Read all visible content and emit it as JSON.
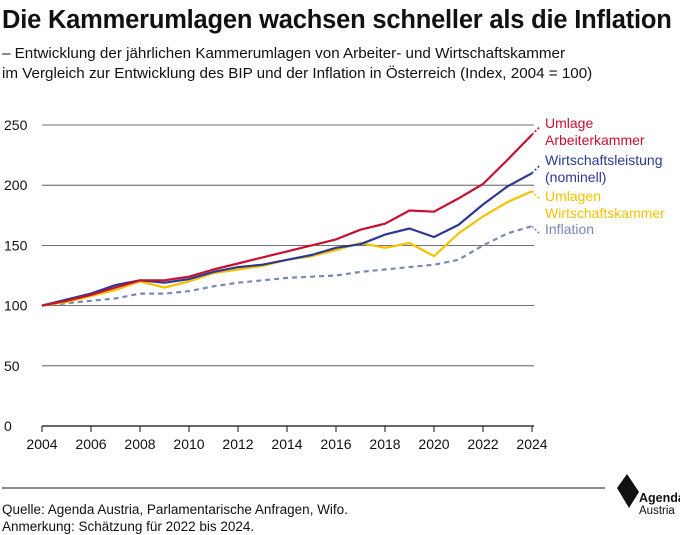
{
  "title": "Die Kammerumlagen wachsen schneller als die Inflation",
  "subtitle_line1": "– Entwicklung der jährlichen Kammerumlagen von Arbeiter- und Wirtschaftskammer",
  "subtitle_line2": "im Vergleich zur Entwicklung des BIP und der Inflation in Österreich (Index, 2004 = 100)",
  "footer": {
    "source": "Quelle: Agenda Austria, Parlamentarische Anfragen, Wifo.",
    "note": "Anmerkung: Schätzung für 2022 bis 2024."
  },
  "logo": {
    "brand": "Agenda",
    "brand2": "Austria"
  },
  "chart_data": {
    "type": "line",
    "x": [
      2004,
      2005,
      2006,
      2007,
      2008,
      2009,
      2010,
      2011,
      2012,
      2013,
      2014,
      2015,
      2016,
      2017,
      2018,
      2019,
      2020,
      2021,
      2022,
      2023,
      2024
    ],
    "xticks": [
      "2004",
      "2006",
      "2008",
      "2010",
      "2012",
      "2014",
      "2016",
      "2018",
      "2020",
      "2022",
      "2024"
    ],
    "yticks": [
      "0",
      "50",
      "100",
      "150",
      "200",
      "250"
    ],
    "ylim": [
      0,
      250
    ],
    "xlim": [
      2004,
      2024
    ],
    "grid": "horizontal",
    "legend": "inline-right",
    "series": [
      {
        "name_line1": "Umlage",
        "name_line2": "Arbeiterkammer",
        "color": "#c8102e",
        "dashed": false,
        "values": [
          100,
          104,
          109,
          115,
          121,
          121,
          124,
          130,
          135,
          140,
          145,
          150,
          155,
          163,
          168,
          179,
          178,
          189,
          201,
          221,
          242
        ]
      },
      {
        "name_line1": "Wirtschaftsleistung",
        "name_line2": "(nominell)",
        "color": "#2b3990",
        "dashed": false,
        "values": [
          100,
          105,
          110,
          117,
          121,
          119,
          122,
          128,
          132,
          134,
          138,
          142,
          148,
          151,
          159,
          164,
          157,
          167,
          184,
          199,
          210
        ]
      },
      {
        "name_line1": "Umlagen",
        "name_line2": "Wirtschaftskammer",
        "color": "#f2c200",
        "dashed": false,
        "values": [
          100,
          103,
          108,
          113,
          120,
          115,
          120,
          127,
          130,
          133,
          138,
          141,
          146,
          152,
          148,
          152,
          141,
          160,
          174,
          186,
          195
        ]
      },
      {
        "name_line1": "Inflation",
        "name_line2": "",
        "color": "#7b86b8",
        "dashed": true,
        "values": [
          100,
          102,
          104,
          106,
          110,
          110,
          112,
          116,
          119,
          121,
          123,
          124,
          125,
          128,
          130,
          132,
          134,
          138,
          150,
          160,
          166
        ]
      }
    ]
  }
}
